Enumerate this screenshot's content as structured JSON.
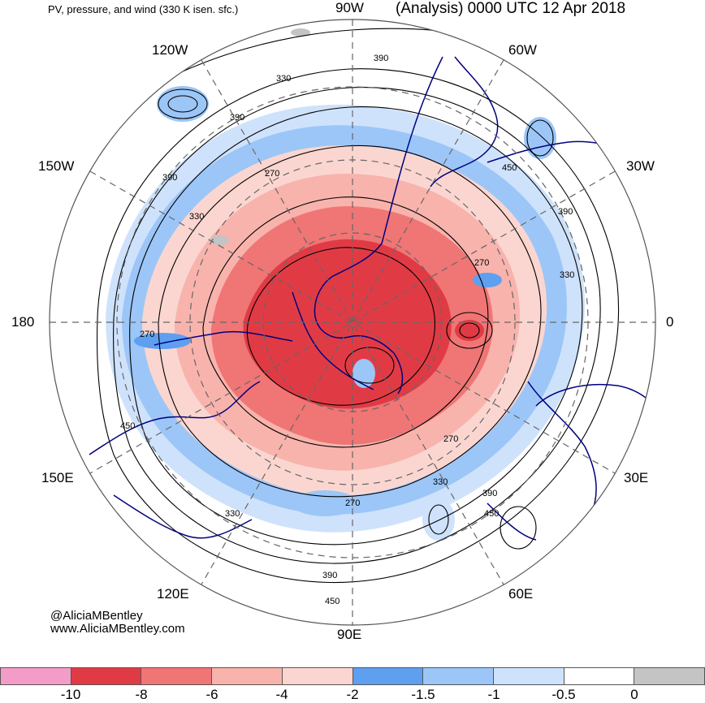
{
  "header": {
    "subtitle": "PV, pressure, and wind (330 K isen. sfc.)",
    "title": "(Analysis) 0000 UTC 12 Apr 2018"
  },
  "longitude_labels": {
    "lon_90w": "90W",
    "lon_120w": "120W",
    "lon_60w": "60W",
    "lon_150w": "150W",
    "lon_30w": "30W",
    "lon_180": "180",
    "lon_0": "0",
    "lon_150e": "150E",
    "lon_30e": "30E",
    "lon_120e": "120E",
    "lon_60e": "60E",
    "lon_90e": "90E"
  },
  "contour_labels": [
    "390",
    "330",
    "390",
    "270",
    "390",
    "330",
    "450",
    "390",
    "270",
    "330",
    "270",
    "270",
    "330",
    "390",
    "450",
    "330",
    "270",
    "390",
    "450",
    "450"
  ],
  "credits": {
    "handle": "@AliciaMBentley",
    "website": "www.AliciaMBentley.com"
  },
  "colorbar": {
    "colors": [
      "#f49cc8",
      "#e03b45",
      "#f07575",
      "#f8b3ad",
      "#fbd6d0",
      "#5e9ff0",
      "#9cc6f7",
      "#cfe2fb",
      "#ffffff",
      "#c4c4c4"
    ],
    "tick_labels": [
      "-10",
      "-8",
      "-6",
      "-4",
      "-2",
      "-1.5",
      "-1",
      "-0.5",
      "0"
    ]
  }
}
